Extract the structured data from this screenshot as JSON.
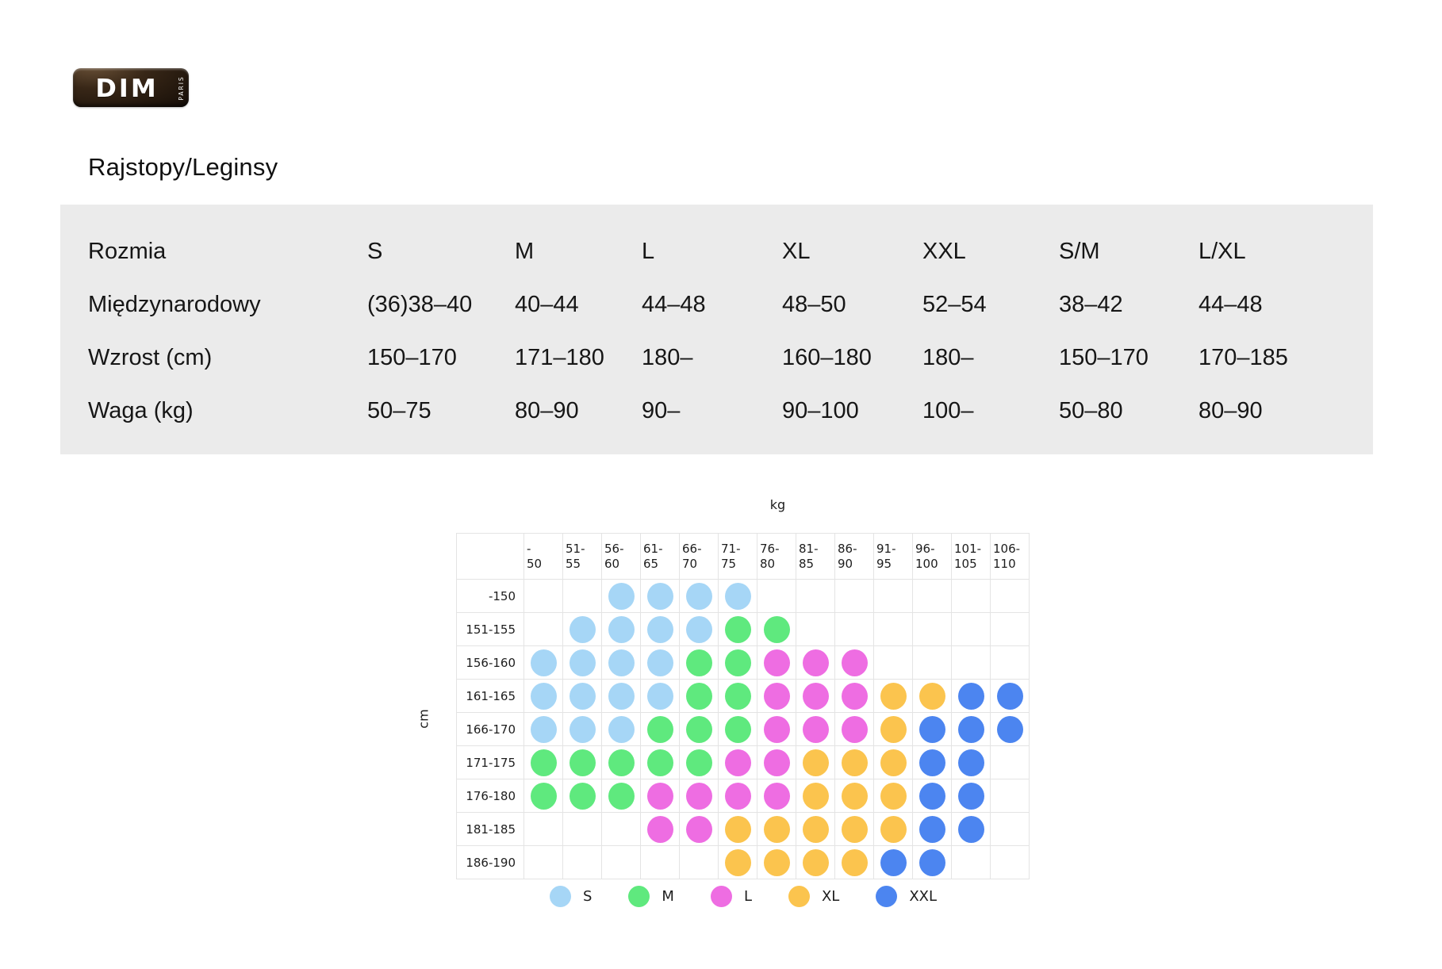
{
  "brand": {
    "name": "DIM",
    "subtitle": "PARIS"
  },
  "page_title": "Rajstopy/Leginsy",
  "size_table": {
    "rows": [
      {
        "label": "Rozmia",
        "values": [
          "S",
          "M",
          "L",
          "XL",
          "XXL",
          "S/M",
          "L/XL"
        ]
      },
      {
        "label": "Międzynarodowy",
        "values": [
          "(36)38–40",
          "40–44",
          "44–48",
          "48–50",
          "52–54",
          "38–42",
          "44–48"
        ]
      },
      {
        "label": "Wzrost (cm)",
        "values": [
          "150–170",
          "171–180",
          "180–",
          "160–180",
          "180–",
          "150–170",
          "170–185"
        ]
      },
      {
        "label": "Waga (kg)",
        "values": [
          "50–75",
          "80–90",
          "90–",
          "90–100",
          "100–",
          "50–80",
          "80–90"
        ]
      }
    ]
  },
  "chart_data": {
    "type": "heatmap",
    "xlabel": "kg",
    "ylabel": "cm",
    "weight_bins": [
      "-\n50",
      "51-\n55",
      "56-\n60",
      "61-\n65",
      "66-\n70",
      "71-\n75",
      "76-\n80",
      "81-\n85",
      "86-\n90",
      "91-\n95",
      "96-\n100",
      "101-\n105",
      "106-\n110"
    ],
    "height_bins": [
      "-150",
      "151-155",
      "156-160",
      "161-165",
      "166-170",
      "171-175",
      "176-180",
      "181-185",
      "186-190"
    ],
    "cells": [
      [
        "",
        "",
        "S",
        "S",
        "S",
        "S",
        "",
        "",
        "",
        "",
        "",
        "",
        ""
      ],
      [
        "",
        "S",
        "S",
        "S",
        "S",
        "M",
        "M",
        "",
        "",
        "",
        "",
        "",
        ""
      ],
      [
        "S",
        "S",
        "S",
        "S",
        "M",
        "M",
        "L",
        "L",
        "L",
        "",
        "",
        "",
        ""
      ],
      [
        "S",
        "S",
        "S",
        "S",
        "M",
        "M",
        "L",
        "L",
        "L",
        "XL",
        "XL",
        "XXL",
        "XXL"
      ],
      [
        "S",
        "S",
        "S",
        "M",
        "M",
        "M",
        "L",
        "L",
        "L",
        "XL",
        "XXL",
        "XXL",
        "XXL"
      ],
      [
        "M",
        "M",
        "M",
        "M",
        "M",
        "L",
        "L",
        "XL",
        "XL",
        "XL",
        "XXL",
        "XXL",
        ""
      ],
      [
        "M",
        "M",
        "M",
        "L",
        "L",
        "L",
        "L",
        "XL",
        "XL",
        "XL",
        "XXL",
        "XXL",
        ""
      ],
      [
        "",
        "",
        "",
        "L",
        "L",
        "XL",
        "XL",
        "XL",
        "XL",
        "XL",
        "XXL",
        "XXL",
        ""
      ],
      [
        "",
        "",
        "",
        "",
        "",
        "XL",
        "XL",
        "XL",
        "XL",
        "XXL",
        "XXL",
        "",
        ""
      ]
    ],
    "legend": [
      "S",
      "M",
      "L",
      "XL",
      "XXL"
    ],
    "colors": {
      "S": "#A6D6F6",
      "M": "#5FE97E",
      "L": "#EE6DE2",
      "XL": "#FBC44E",
      "XXL": "#4C85F0"
    }
  },
  "colors": {
    "table_bg": "#EBEBEB",
    "grid_border": "#E4E4E4"
  }
}
